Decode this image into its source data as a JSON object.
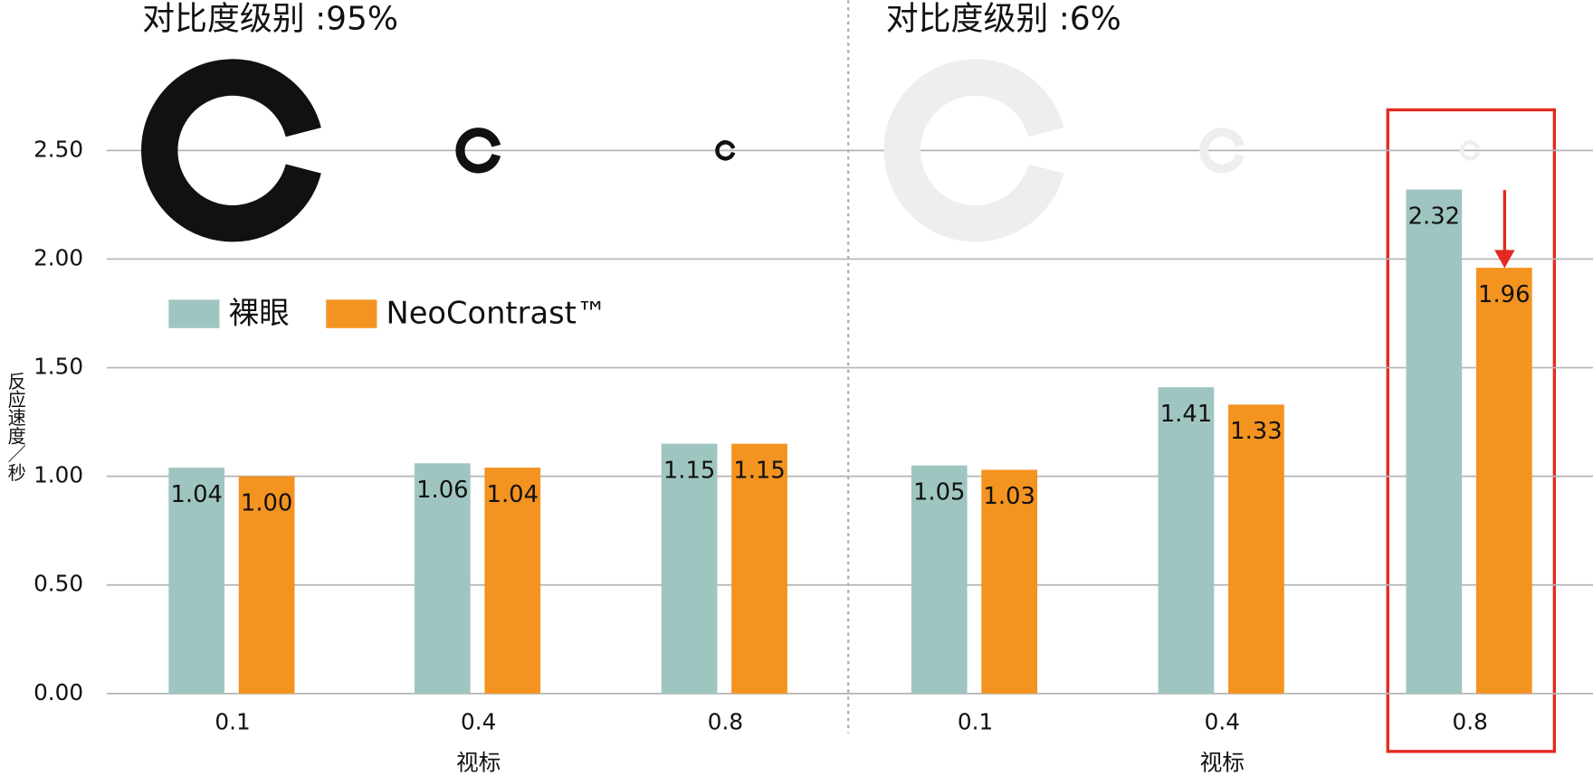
{
  "chart_data": {
    "type": "bar",
    "y_label": "反应速度／秒",
    "ylim": [
      0,
      2.5
    ],
    "yticks": [
      {
        "value": 0,
        "label": "0.00"
      },
      {
        "value": 0.5,
        "label": "0.50"
      },
      {
        "value": 1,
        "label": "1.00"
      },
      {
        "value": 1.5,
        "label": "1.50"
      },
      {
        "value": 2,
        "label": "2.00"
      },
      {
        "value": 2.5,
        "label": "2.50"
      }
    ],
    "grid": true,
    "series": [
      {
        "name": "裸眼",
        "color": "#9fc5c1"
      },
      {
        "name": "NeoContrast™",
        "color": "#f39320"
      }
    ],
    "panels": [
      {
        "title": "对比度级别 :95%",
        "x_label": "视标",
        "categories": [
          "0.1",
          "0.4",
          "0.8"
        ],
        "series": [
          {
            "values": [
              1.04,
              1.06,
              1.15
            ],
            "value_labels": [
              "1.04",
              "1.06",
              "1.15"
            ]
          },
          {
            "values": [
              1,
              1.04,
              1.15
            ],
            "value_labels": [
              "1.00",
              "1.04",
              "1.15"
            ]
          }
        ]
      },
      {
        "title": "对比度级别 :6%",
        "x_label": "视标",
        "categories": [
          "0.1",
          "0.4",
          "0.8"
        ],
        "series": [
          {
            "values": [
              1.05,
              1.41,
              2.32
            ],
            "value_labels": [
              "1.05",
              "1.41",
              "2.32"
            ]
          },
          {
            "values": [
              1.03,
              1.33,
              1.96
            ],
            "value_labels": [
              "1.03",
              "1.33",
              "1.96"
            ]
          }
        ]
      }
    ]
  }
}
